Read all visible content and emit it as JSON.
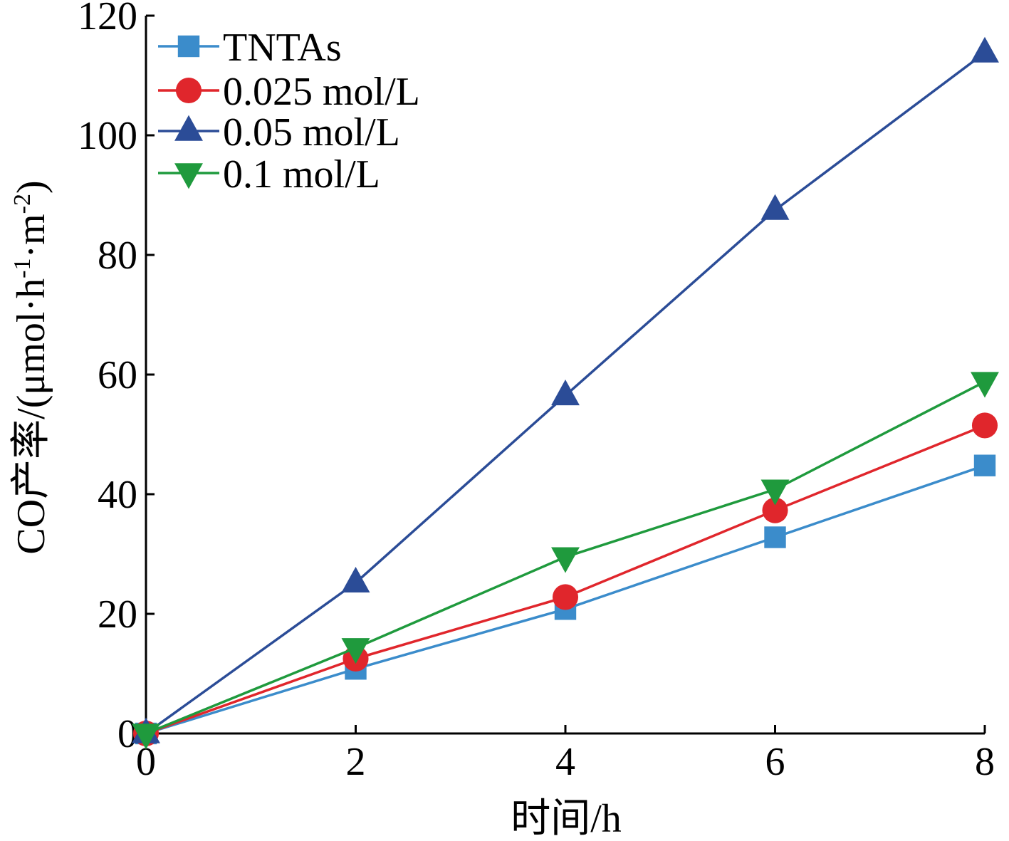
{
  "chart_data": {
    "type": "line",
    "xlabel": "时间/h",
    "ylabel": "CO产率/(μmol·h",
    "ylabel_sup1": "-1",
    "ylabel_mid": "·m",
    "ylabel_sup2": "-2",
    "ylabel_end": ")",
    "xlim": [
      0,
      8
    ],
    "ylim": [
      0,
      120
    ],
    "xticks": [
      "0",
      "2",
      "4",
      "6",
      "8"
    ],
    "yticks": [
      "0",
      "20",
      "40",
      "60",
      "80",
      "100",
      "120"
    ],
    "grid": false,
    "legend_position": "top-left",
    "x": [
      0,
      2,
      4,
      6,
      8
    ],
    "series": [
      {
        "name": "TNTAs",
        "marker": "square",
        "color": "#3b8ccb",
        "values": [
          0,
          10.8,
          20.8,
          32.8,
          44.8
        ]
      },
      {
        "name": "0.025 mol/L",
        "marker": "circle",
        "color": "#e0262c",
        "values": [
          0,
          12.5,
          22.8,
          37.3,
          51.5
        ]
      },
      {
        "name": "0.05 mol/L",
        "marker": "triangle-up",
        "color": "#2b4c97",
        "values": [
          0,
          25.2,
          56.5,
          87.5,
          113.8
        ]
      },
      {
        "name": "0.1 mol/L",
        "marker": "triangle-down",
        "color": "#1f9a3d",
        "values": [
          0,
          14.3,
          29.5,
          40.8,
          58.8
        ]
      }
    ]
  }
}
